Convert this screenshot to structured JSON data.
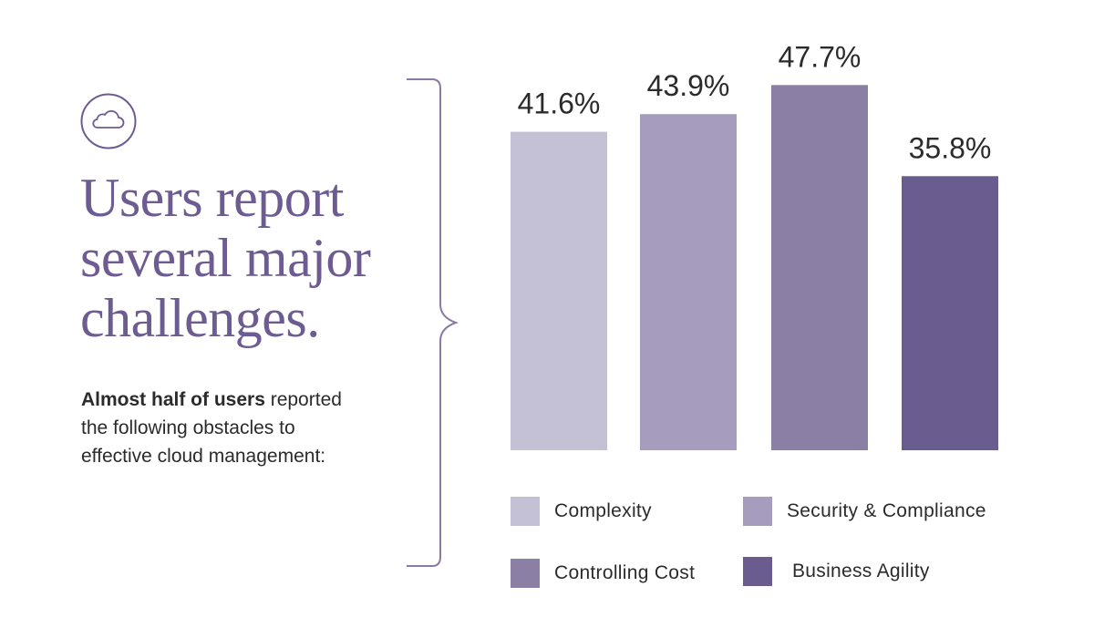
{
  "headline": {
    "lines": [
      "Users report",
      "several major",
      "challenges."
    ]
  },
  "subtext": {
    "bold": "Almost half of users",
    "rest_line1": " reported",
    "line2": "the following obstacles to",
    "line3": "effective cloud management:"
  },
  "icon": {
    "name": "cloud-icon"
  },
  "colors": {
    "accent": "#6d5c91",
    "bracket": "#8a7aa6",
    "bar_complexity": "#c4c0d6",
    "bar_security": "#a69cbd",
    "bar_cost": "#8b7fa6",
    "bar_agility": "#6b5c8f"
  },
  "chart_data": {
    "type": "bar",
    "title": "",
    "xlabel": "",
    "ylabel": "",
    "grid": false,
    "ylim": [
      0,
      50
    ],
    "legend_position": "bottom",
    "categories": [
      "Complexity",
      "Security & Compliance",
      "Controlling Cost",
      "Business Agility"
    ],
    "values": [
      41.6,
      43.9,
      47.7,
      35.8
    ],
    "value_labels": [
      "41.6%",
      "43.9%",
      "47.7%",
      "35.8%"
    ],
    "series_colors": [
      "#c4c0d6",
      "#a69cbd",
      "#8b7fa6",
      "#6b5c8f"
    ]
  }
}
